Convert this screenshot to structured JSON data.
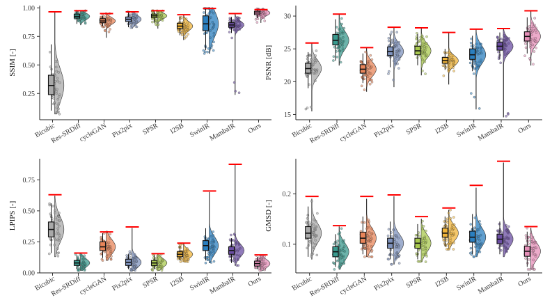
{
  "methods": [
    "Bicubic",
    "Res-SRDiff",
    "cycleGAN",
    "Pix2pix",
    "SPSR",
    "I2SB",
    "SwinIR",
    "MambaIR",
    "Ours"
  ],
  "method_colors": [
    "#a9a9a9",
    "#3a9a8e",
    "#e8855a",
    "#7f93bd",
    "#a9c94f",
    "#f0b43a",
    "#2b7fbf",
    "#6b4ea3",
    "#e58fb8"
  ],
  "ref_line_color": "#ff0000",
  "chart_data": [
    {
      "type": "box-violin",
      "ylabel": "SSIM [-]",
      "ylim": [
        0.02,
        1.02
      ],
      "yticks": [
        0.25,
        0.5,
        0.75,
        1.0
      ],
      "tick_labels": [
        "0.25",
        "0.50",
        "0.75",
        "1.00"
      ],
      "series": [
        {
          "name": "Bicubic",
          "q1": 0.24,
          "median": 0.32,
          "q3": 0.41,
          "whisker_low": 0.1,
          "whisker_high": 0.68,
          "min": 0.07,
          "max": 0.96,
          "ref": 0.965
        },
        {
          "name": "Res-SRDiff",
          "q1": 0.91,
          "median": 0.925,
          "q3": 0.945,
          "whisker_low": 0.86,
          "whisker_high": 0.97,
          "min": 0.85,
          "max": 0.975,
          "ref": 0.975
        },
        {
          "name": "cycleGAN",
          "q1": 0.87,
          "median": 0.885,
          "q3": 0.905,
          "whisker_low": 0.84,
          "whisker_high": 0.93,
          "min": 0.74,
          "max": 0.95,
          "ref": 0.95
        },
        {
          "name": "Pix2pix",
          "q1": 0.88,
          "median": 0.9,
          "q3": 0.92,
          "whisker_low": 0.83,
          "whisker_high": 0.96,
          "min": 0.82,
          "max": 0.965,
          "ref": 0.965
        },
        {
          "name": "SPSR",
          "q1": 0.915,
          "median": 0.93,
          "q3": 0.945,
          "whisker_low": 0.87,
          "whisker_high": 0.97,
          "min": 0.82,
          "max": 0.975,
          "ref": 0.975
        },
        {
          "name": "I2SB",
          "q1": 0.82,
          "median": 0.84,
          "q3": 0.865,
          "whisker_low": 0.76,
          "whisker_high": 0.92,
          "min": 0.72,
          "max": 0.935,
          "ref": 0.94
        },
        {
          "name": "SwinIR",
          "q1": 0.8,
          "median": 0.86,
          "q3": 0.93,
          "whisker_low": 0.63,
          "whisker_high": 0.99,
          "min": 0.6,
          "max": 0.995,
          "ref": 0.995
        },
        {
          "name": "MambaIR",
          "q1": 0.83,
          "median": 0.85,
          "q3": 0.87,
          "whisker_low": 0.78,
          "whisker_high": 0.92,
          "min": 0.24,
          "max": 0.95,
          "ref": 0.95
        },
        {
          "name": "Ours",
          "q1": 0.94,
          "median": 0.955,
          "q3": 0.97,
          "whisker_low": 0.91,
          "whisker_high": 0.985,
          "min": 0.87,
          "max": 0.99,
          "ref": 0.985
        }
      ]
    },
    {
      "type": "box-violin",
      "ylabel": "PSNR [dB]",
      "ylim": [
        14.2,
        31.6
      ],
      "yticks": [
        15,
        20,
        25,
        30
      ],
      "tick_labels": [
        "15",
        "20",
        "25",
        "30"
      ],
      "series": [
        {
          "name": "Bicubic",
          "q1": 21.3,
          "median": 22.0,
          "q3": 22.8,
          "whisker_low": 19.0,
          "whisker_high": 24.5,
          "min": 15.5,
          "max": 25.8,
          "ref": 25.9
        },
        {
          "name": "Res-SRDiff",
          "q1": 25.6,
          "median": 26.3,
          "q3": 27.2,
          "whisker_low": 23.2,
          "whisker_high": 29.5,
          "min": 22.5,
          "max": 30.2,
          "ref": 30.3
        },
        {
          "name": "cycleGAN",
          "q1": 21.3,
          "median": 21.9,
          "q3": 22.6,
          "whisker_low": 19.8,
          "whisker_high": 24.3,
          "min": 18.5,
          "max": 25.1,
          "ref": 25.2
        },
        {
          "name": "Pix2pix",
          "q1": 24.0,
          "median": 24.6,
          "q3": 25.3,
          "whisker_low": 22.2,
          "whisker_high": 27.2,
          "min": 19.2,
          "max": 28.2,
          "ref": 28.3
        },
        {
          "name": "SPSR",
          "q1": 24.1,
          "median": 24.7,
          "q3": 25.4,
          "whisker_low": 22.5,
          "whisker_high": 27.3,
          "min": 21.0,
          "max": 28.1,
          "ref": 28.2
        },
        {
          "name": "I2SB",
          "q1": 22.8,
          "median": 23.2,
          "q3": 23.7,
          "whisker_low": 21.8,
          "whisker_high": 25.0,
          "min": 19.6,
          "max": 27.4,
          "ref": 27.5
        },
        {
          "name": "SwinIR",
          "q1": 23.4,
          "median": 24.1,
          "q3": 25.0,
          "whisker_low": 21.6,
          "whisker_high": 27.0,
          "min": 15.8,
          "max": 27.9,
          "ref": 28.0
        },
        {
          "name": "MambaIR",
          "q1": 24.8,
          "median": 25.4,
          "q3": 26.0,
          "whisker_low": 23.4,
          "whisker_high": 27.5,
          "min": 14.6,
          "max": 28.0,
          "ref": 28.1
        },
        {
          "name": "Ours",
          "q1": 26.2,
          "median": 26.9,
          "q3": 27.6,
          "whisker_low": 24.3,
          "whisker_high": 29.8,
          "min": 22.5,
          "max": 30.7,
          "ref": 30.8
        }
      ]
    },
    {
      "type": "box-violin",
      "ylabel": "LPIPS [-]",
      "ylim": [
        0,
        0.92
      ],
      "yticks": [
        0.0,
        0.25,
        0.5,
        0.75
      ],
      "tick_labels": [
        "0.00",
        "0.25",
        "0.50",
        "0.75"
      ],
      "series": [
        {
          "name": "Bicubic",
          "q1": 0.29,
          "median": 0.35,
          "q3": 0.41,
          "whisker_low": 0.16,
          "whisker_high": 0.56,
          "min": 0.13,
          "max": 0.62,
          "ref": 0.63
        },
        {
          "name": "Res-SRDiff",
          "q1": 0.06,
          "median": 0.08,
          "q3": 0.1,
          "whisker_low": 0.03,
          "whisker_high": 0.14,
          "min": 0.02,
          "max": 0.16,
          "ref": 0.16
        },
        {
          "name": "cycleGAN",
          "q1": 0.18,
          "median": 0.21,
          "q3": 0.25,
          "whisker_low": 0.12,
          "whisker_high": 0.32,
          "min": 0.1,
          "max": 0.33,
          "ref": 0.33
        },
        {
          "name": "Pix2pix",
          "q1": 0.06,
          "median": 0.085,
          "q3": 0.11,
          "whisker_low": 0.03,
          "whisker_high": 0.15,
          "min": 0.02,
          "max": 0.36,
          "ref": 0.37
        },
        {
          "name": "SPSR",
          "q1": 0.06,
          "median": 0.08,
          "q3": 0.1,
          "whisker_low": 0.03,
          "whisker_high": 0.14,
          "min": 0.02,
          "max": 0.15,
          "ref": 0.155
        },
        {
          "name": "I2SB",
          "q1": 0.13,
          "median": 0.15,
          "q3": 0.17,
          "whisker_low": 0.1,
          "whisker_high": 0.22,
          "min": 0.09,
          "max": 0.235,
          "ref": 0.24
        },
        {
          "name": "SwinIR",
          "q1": 0.18,
          "median": 0.22,
          "q3": 0.26,
          "whisker_low": 0.1,
          "whisker_high": 0.36,
          "min": 0.08,
          "max": 0.65,
          "ref": 0.66
        },
        {
          "name": "MambaIR",
          "q1": 0.15,
          "median": 0.18,
          "q3": 0.21,
          "whisker_low": 0.08,
          "whisker_high": 0.28,
          "min": 0.06,
          "max": 0.87,
          "ref": 0.875
        },
        {
          "name": "Ours",
          "q1": 0.055,
          "median": 0.075,
          "q3": 0.095,
          "whisker_low": 0.03,
          "whisker_high": 0.13,
          "min": 0.02,
          "max": 0.14,
          "ref": 0.145
        }
      ]
    },
    {
      "type": "box-violin",
      "ylabel": "GMSD [-]",
      "ylim": [
        0.043,
        0.27
      ],
      "yticks": [
        0.1,
        0.2
      ],
      "tick_labels": [
        "0.1",
        "0.2"
      ],
      "series": [
        {
          "name": "Bicubic",
          "q1": 0.112,
          "median": 0.122,
          "q3": 0.135,
          "whisker_low": 0.075,
          "whisker_high": 0.175,
          "min": 0.07,
          "max": 0.19,
          "ref": 0.195
        },
        {
          "name": "Res-SRDiff",
          "q1": 0.075,
          "median": 0.085,
          "q3": 0.095,
          "whisker_low": 0.055,
          "whisker_high": 0.12,
          "min": 0.05,
          "max": 0.135,
          "ref": 0.137
        },
        {
          "name": "cycleGAN",
          "q1": 0.102,
          "median": 0.112,
          "q3": 0.124,
          "whisker_low": 0.08,
          "whisker_high": 0.155,
          "min": 0.075,
          "max": 0.19,
          "ref": 0.195
        },
        {
          "name": "Pix2pix",
          "q1": 0.092,
          "median": 0.102,
          "q3": 0.112,
          "whisker_low": 0.07,
          "whisker_high": 0.145,
          "min": 0.06,
          "max": 0.195,
          "ref": 0.198
        },
        {
          "name": "SPSR",
          "q1": 0.092,
          "median": 0.102,
          "q3": 0.112,
          "whisker_low": 0.07,
          "whisker_high": 0.14,
          "min": 0.065,
          "max": 0.15,
          "ref": 0.155
        },
        {
          "name": "I2SB",
          "q1": 0.114,
          "median": 0.122,
          "q3": 0.132,
          "whisker_low": 0.095,
          "whisker_high": 0.155,
          "min": 0.09,
          "max": 0.168,
          "ref": 0.172
        },
        {
          "name": "SwinIR",
          "q1": 0.104,
          "median": 0.114,
          "q3": 0.126,
          "whisker_low": 0.08,
          "whisker_high": 0.16,
          "min": 0.075,
          "max": 0.212,
          "ref": 0.217
        },
        {
          "name": "MambaIR",
          "q1": 0.101,
          "median": 0.11,
          "q3": 0.12,
          "whisker_low": 0.08,
          "whisker_high": 0.145,
          "min": 0.075,
          "max": 0.262,
          "ref": 0.265
        },
        {
          "name": "Ours",
          "q1": 0.076,
          "median": 0.086,
          "q3": 0.096,
          "whisker_low": 0.055,
          "whisker_high": 0.125,
          "min": 0.05,
          "max": 0.132,
          "ref": 0.135
        }
      ]
    }
  ]
}
